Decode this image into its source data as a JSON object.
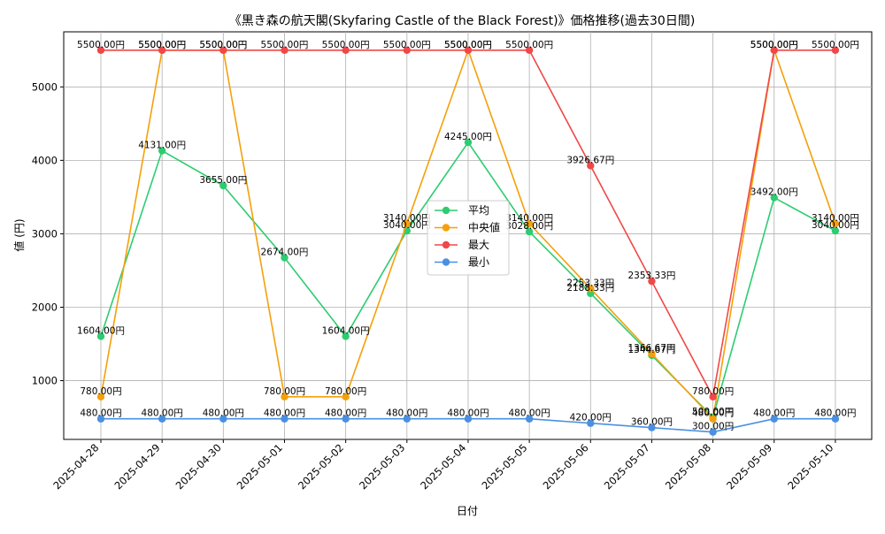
{
  "chart_data": {
    "type": "line",
    "title": "《黒き森の航天閣(Skyfaring Castle of the Black Forest)》価格推移(過去30日間)",
    "xlabel": "日付",
    "ylabel": "値 (円)",
    "categories": [
      "2025-04-28",
      "2025-04-29",
      "2025-04-30",
      "2025-05-01",
      "2025-05-02",
      "2025-05-03",
      "2025-05-04",
      "2025-05-05",
      "2025-05-06",
      "2025-05-07",
      "2025-05-08",
      "2025-05-09",
      "2025-05-10"
    ],
    "ylim": [
      200,
      5750
    ],
    "yticks": [
      1000,
      2000,
      3000,
      4000,
      5000
    ],
    "grid": true,
    "legend_position": "center",
    "label_suffix": "円",
    "series": [
      {
        "name": "平均",
        "color": "#2ecc71",
        "values": [
          1604.0,
          4131.0,
          3655.0,
          2674.0,
          1604.0,
          3040.0,
          4245.0,
          3028.0,
          2188.33,
          1344.67,
          500.0,
          3492.0,
          3040.0
        ]
      },
      {
        "name": "中央値",
        "color": "#f5a00b",
        "values": [
          780.0,
          5500.0,
          5500.0,
          780.0,
          780.0,
          3140.0,
          5500.0,
          3140.0,
          2253.33,
          1366.67,
          480.0,
          5500.0,
          3140.0
        ]
      },
      {
        "name": "最大",
        "color": "#f04848",
        "values": [
          5500.0,
          5500.0,
          5500.0,
          5500.0,
          5500.0,
          5500.0,
          5500.0,
          5500.0,
          3926.67,
          2353.33,
          780.0,
          5500.0,
          5500.0
        ]
      },
      {
        "name": "最小",
        "color": "#4a90e2",
        "values": [
          480.0,
          480.0,
          480.0,
          480.0,
          480.0,
          480.0,
          480.0,
          480.0,
          420.0,
          360.0,
          300.0,
          480.0,
          480.0
        ]
      }
    ]
  }
}
